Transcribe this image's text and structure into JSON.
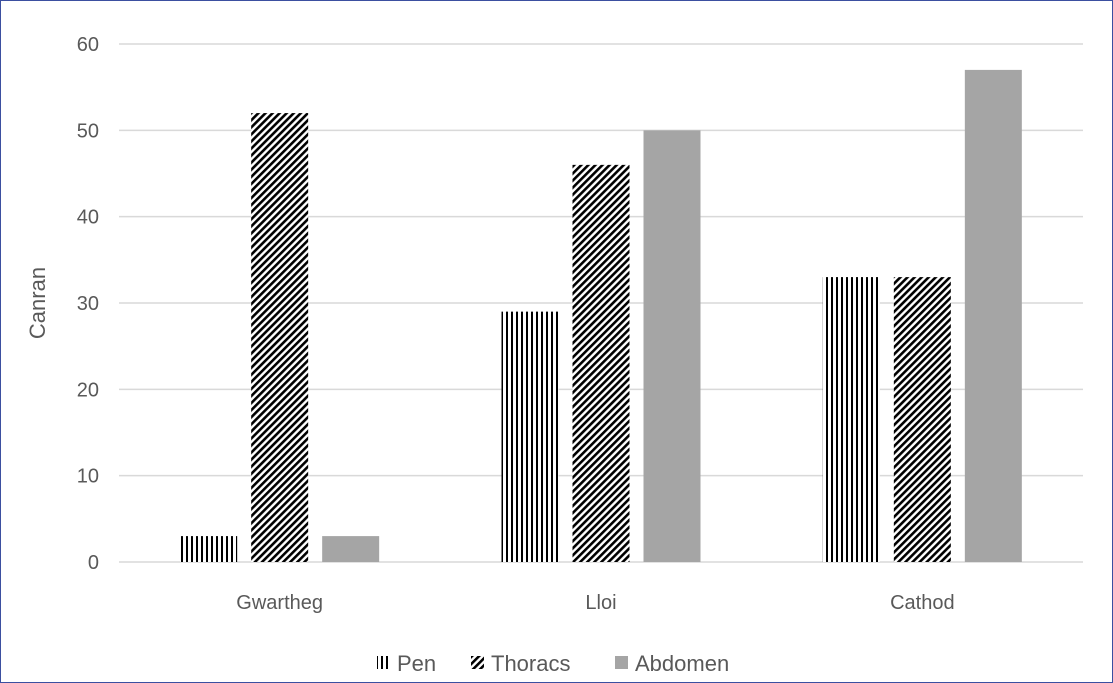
{
  "chart_data": {
    "type": "bar",
    "categories": [
      "Gwartheg",
      "Lloi",
      "Cathod"
    ],
    "series": [
      {
        "name": "Pen",
        "values": [
          3,
          29,
          33
        ],
        "pattern": "vertical-lines",
        "color": "#000000"
      },
      {
        "name": "Thoracs",
        "values": [
          52,
          46,
          33
        ],
        "pattern": "diagonal-hatch",
        "color": "#000000"
      },
      {
        "name": "Abdomen",
        "values": [
          3,
          50,
          57
        ],
        "pattern": "solid",
        "color": "#a5a5a5"
      }
    ],
    "ylabel": "Canran",
    "xlabel": "",
    "title": "",
    "ylim": [
      0,
      60
    ],
    "yticks": [
      0,
      10,
      20,
      30,
      40,
      50,
      60
    ],
    "grid": true,
    "legend_position": "bottom"
  }
}
